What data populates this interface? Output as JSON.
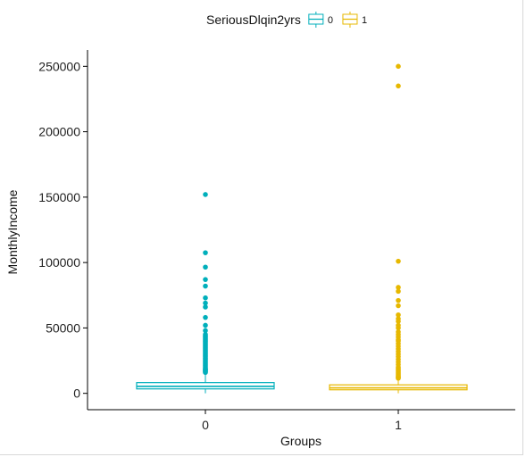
{
  "chart_data": {
    "type": "box",
    "title": "",
    "xlabel": "Groups",
    "ylabel": "MonthlyIncome",
    "categories": [
      "0",
      "1"
    ],
    "ylim": [
      -12500,
      262500
    ],
    "yticks": [
      0,
      50000,
      100000,
      150000,
      200000,
      250000
    ],
    "grid": false,
    "legend": {
      "title": "SeriousDlqin2yrs",
      "entries": [
        "0",
        "1"
      ],
      "position": "top"
    },
    "series": [
      {
        "name": "0",
        "color": "#00AFBB",
        "whisker_low": 0,
        "q1": 3400,
        "median": 5400,
        "q3": 8200,
        "whisker_high": 15400,
        "outliers": [
          152000,
          107500,
          96500,
          87000,
          82000,
          73000,
          69000,
          66000,
          58000,
          52000,
          48000,
          45000,
          44000,
          43000,
          42000,
          41000,
          40000,
          39000,
          38000,
          37000,
          36000,
          35000,
          34000,
          33000,
          32000,
          31000,
          30000,
          29000,
          28000,
          27000,
          26000,
          25000,
          24000,
          23000,
          22000,
          21000,
          20000,
          19000,
          18500,
          18000,
          17500,
          17000,
          16500,
          16000
        ]
      },
      {
        "name": "1",
        "color": "#E7B800",
        "whisker_low": 0,
        "q1": 2700,
        "median": 4200,
        "q3": 6500,
        "whisker_high": 11000,
        "outliers": [
          250000,
          235000,
          101000,
          81000,
          78000,
          71000,
          67000,
          60000,
          57000,
          55000,
          52000,
          50000,
          47000,
          45000,
          43000,
          41000,
          40000,
          38000,
          36000,
          34000,
          32000,
          30000,
          28000,
          26000,
          24000,
          22000,
          20000,
          19000,
          18000,
          17000,
          16000,
          15000,
          14000,
          13000,
          12500,
          12000,
          11500
        ]
      }
    ]
  }
}
